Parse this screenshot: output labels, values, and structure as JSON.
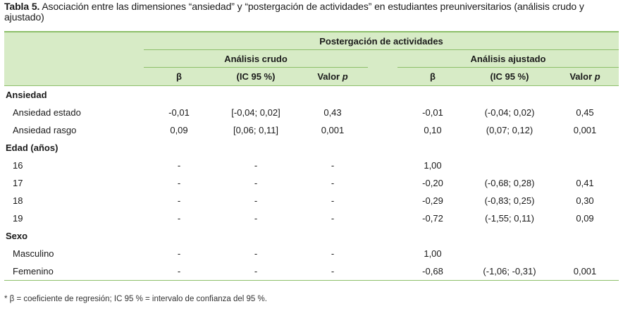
{
  "caption": {
    "label": "Tabla 5.",
    "text": " Asociación entre las dimensiones “ansiedad” y “postergación de actividades” en estudiantes preuniversitarios (análisis crudo y ajustado)"
  },
  "header": {
    "main": "Postergación de actividades",
    "crudo": "Análisis crudo",
    "ajustado": "Análisis ajustado",
    "beta": "β",
    "ic": "(IC 95 %)",
    "valor": "Valor",
    "p": "p"
  },
  "groups": [
    {
      "title": "Ansiedad",
      "rows": [
        {
          "label": "Ansiedad estado",
          "b1": "-0,01",
          "ic1": "[-0,04; 0,02]",
          "p1": "0,43",
          "b2": "-0,01",
          "ic2": "(-0,04; 0,02)",
          "p2": "0,45"
        },
        {
          "label": "Ansiedad rasgo",
          "b1": "0,09",
          "ic1": "[0,06; 0,11]",
          "p1": "0,001",
          "b2": "0,10",
          "ic2": "(0,07; 0,12)",
          "p2": "0,001"
        }
      ]
    },
    {
      "title": "Edad (años)",
      "rows": [
        {
          "label": "16",
          "b1": "-",
          "ic1": "-",
          "p1": "-",
          "b2": "1,00",
          "ic2": "",
          "p2": ""
        },
        {
          "label": "17",
          "b1": "-",
          "ic1": "-",
          "p1": "-",
          "b2": "-0,20",
          "ic2": "(-0,68; 0,28)",
          "p2": "0,41"
        },
        {
          "label": "18",
          "b1": "-",
          "ic1": "-",
          "p1": "-",
          "b2": "-0,29",
          "ic2": "(-0,83; 0,25)",
          "p2": "0,30"
        },
        {
          "label": "19",
          "b1": "-",
          "ic1": "-",
          "p1": "-",
          "b2": "-0,72",
          "ic2": "(-1,55; 0,11)",
          "p2": "0,09"
        }
      ]
    },
    {
      "title": "Sexo",
      "rows": [
        {
          "label": "Masculino",
          "b1": "-",
          "ic1": "-",
          "p1": "-",
          "b2": "1,00",
          "ic2": "",
          "p2": ""
        },
        {
          "label": "Femenino",
          "b1": "-",
          "ic1": "-",
          "p1": "-",
          "b2": "-0,68",
          "ic2": "(-1,06; -0,31)",
          "p2": "0,001"
        }
      ]
    }
  ],
  "footnote": "* β = coeficiente de regresión; IC 95 % = intervalo de confianza del 95 %."
}
